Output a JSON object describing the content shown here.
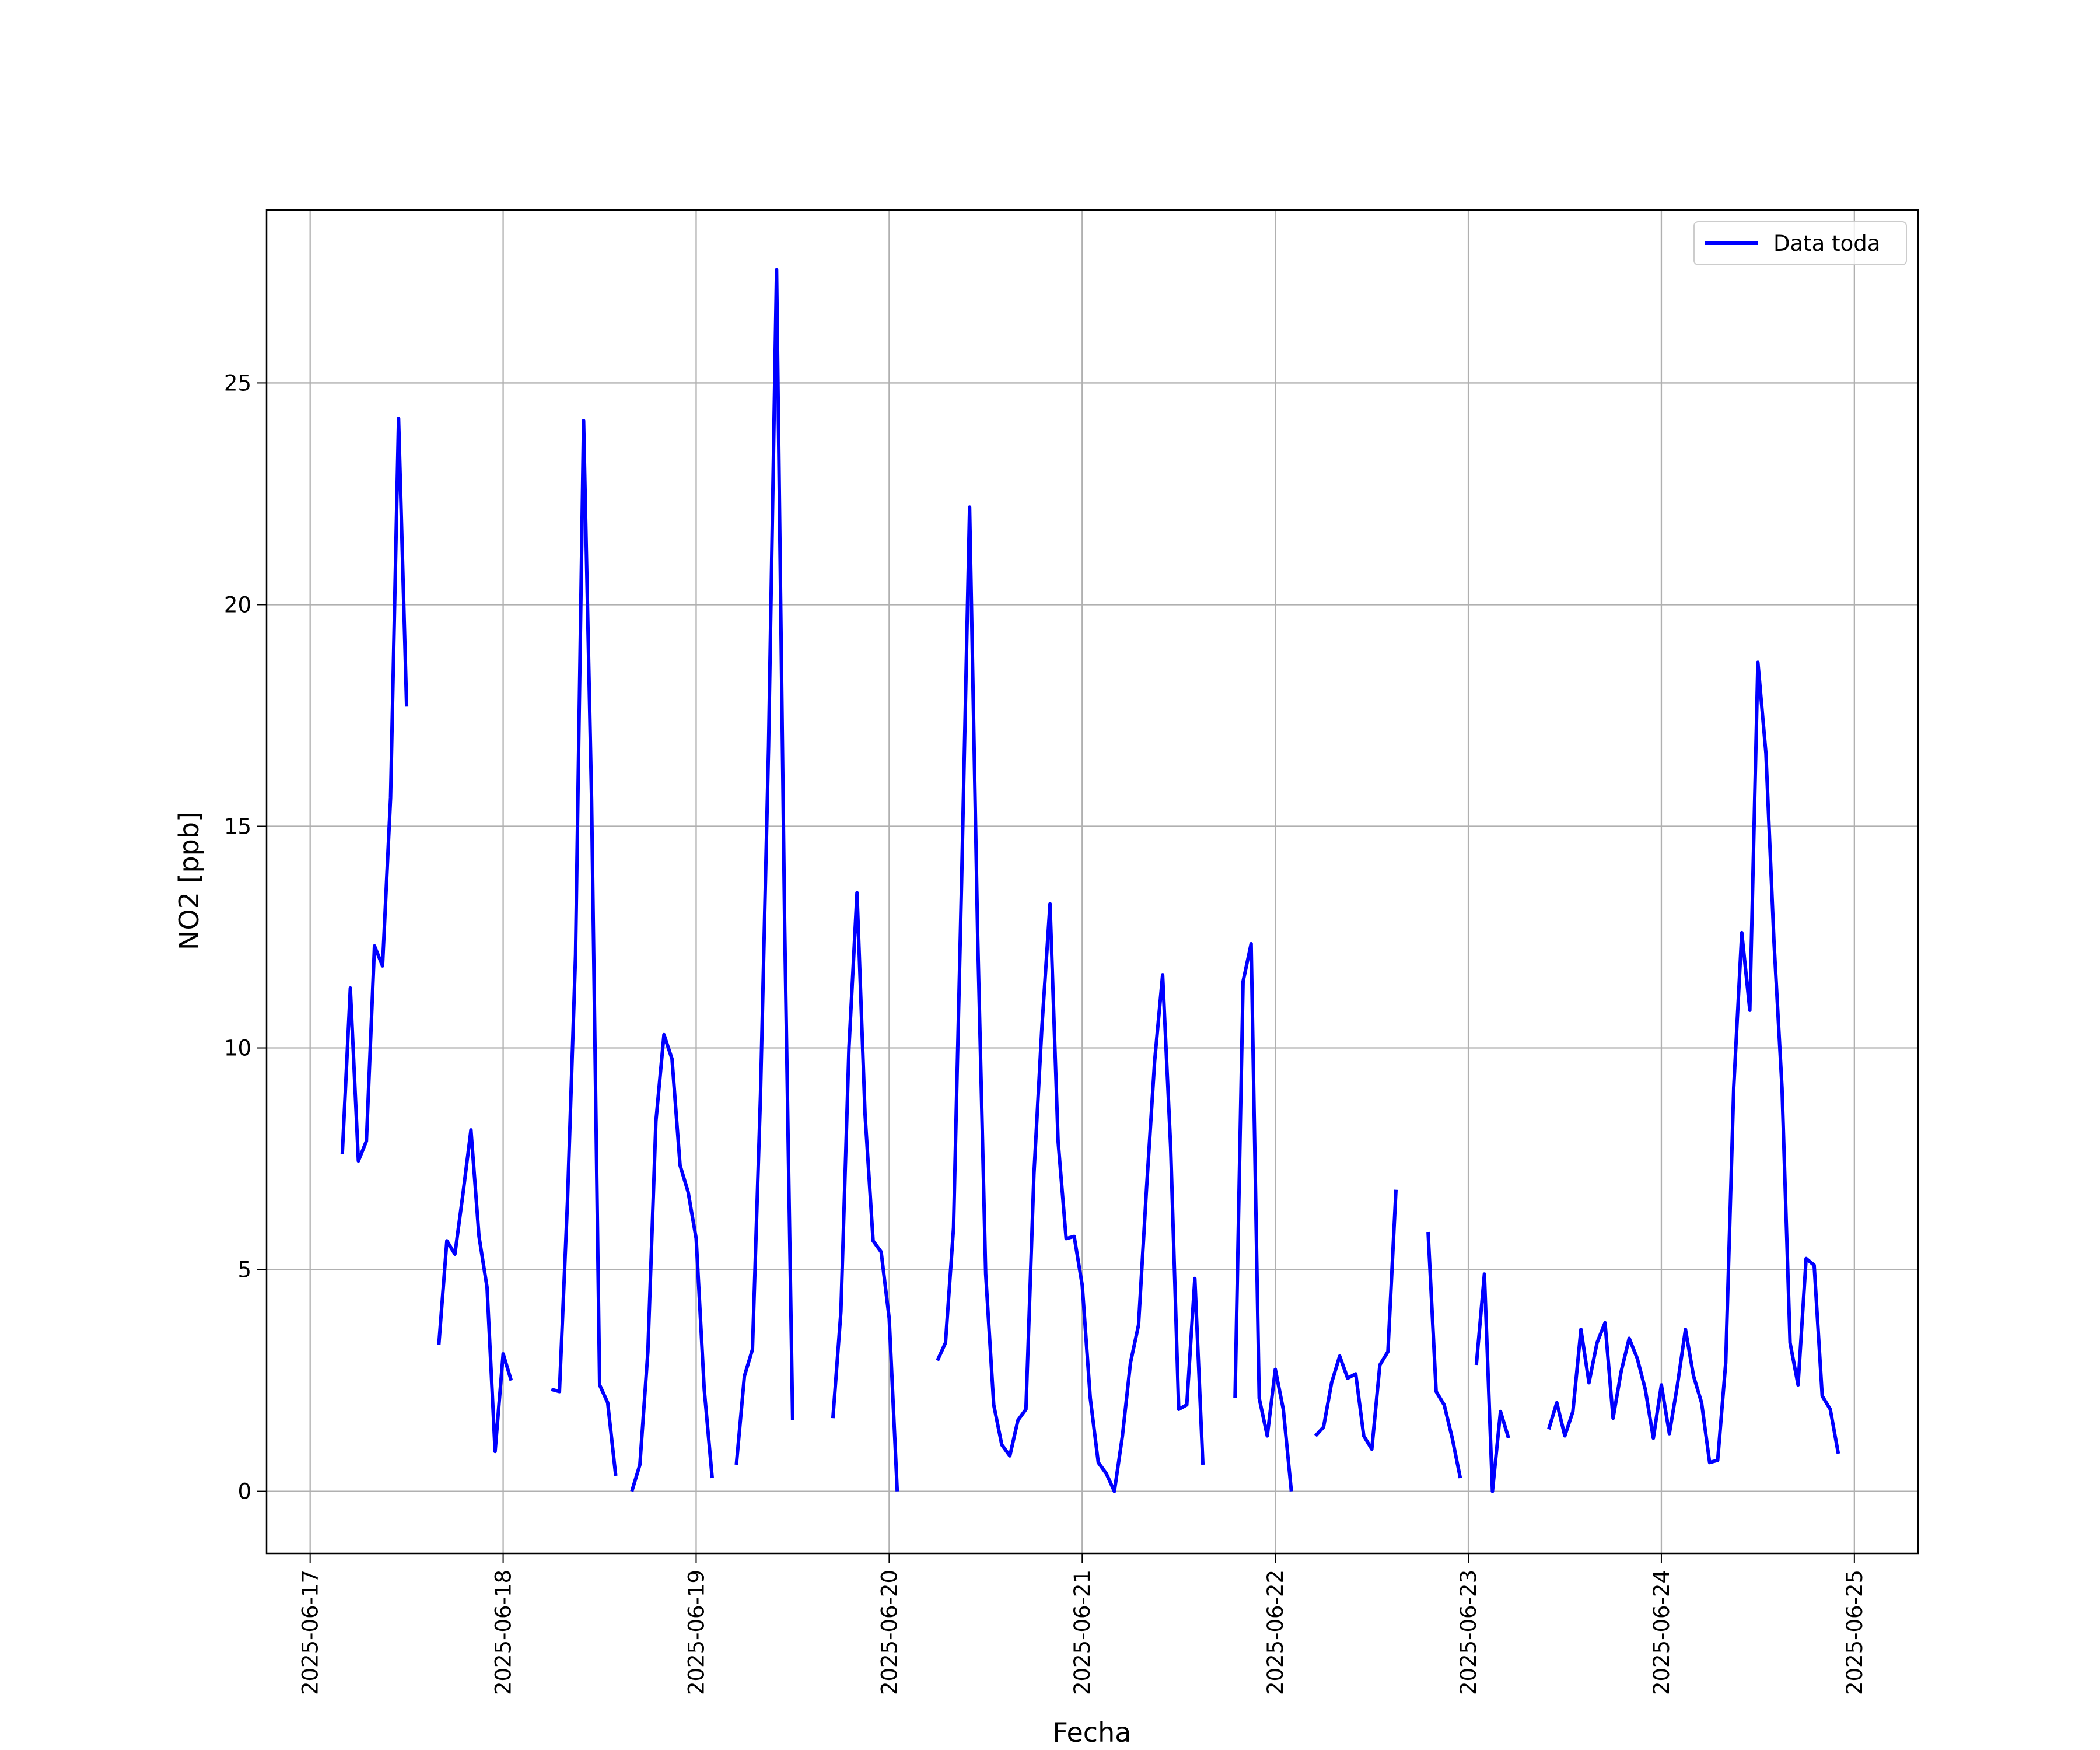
{
  "chart_data": {
    "type": "line",
    "xlabel": "Fecha",
    "ylabel": "NO2 [ppb]",
    "x": [
      "2025-06-17T04:00",
      "2025-06-17T05:00",
      "2025-06-17T06:00",
      "2025-06-17T07:00",
      "2025-06-17T08:00",
      "2025-06-17T09:00",
      "2025-06-17T10:00",
      "2025-06-17T11:00",
      "2025-06-17T12:00",
      "2025-06-17T13:00",
      "2025-06-17T16:00",
      "2025-06-17T17:00",
      "2025-06-17T18:00",
      "2025-06-17T19:00",
      "2025-06-17T20:00",
      "2025-06-17T21:00",
      "2025-06-17T22:00",
      "2025-06-17T23:00",
      "2025-06-18T00:00",
      "2025-06-18T01:00",
      "2025-06-18T02:00",
      "2025-06-18T06:00",
      "2025-06-18T07:00",
      "2025-06-18T08:00",
      "2025-06-18T09:00",
      "2025-06-18T10:00",
      "2025-06-18T11:00",
      "2025-06-18T12:00",
      "2025-06-18T13:00",
      "2025-06-18T14:00",
      "2025-06-18T15:00",
      "2025-06-18T16:00",
      "2025-06-18T17:00",
      "2025-06-18T18:00",
      "2025-06-18T19:00",
      "2025-06-18T20:00",
      "2025-06-18T21:00",
      "2025-06-18T22:00",
      "2025-06-18T23:00",
      "2025-06-19T00:00",
      "2025-06-19T01:00",
      "2025-06-19T02:00",
      "2025-06-19T03:00",
      "2025-06-19T05:00",
      "2025-06-19T06:00",
      "2025-06-19T07:00",
      "2025-06-19T08:00",
      "2025-06-19T09:00",
      "2025-06-19T10:00",
      "2025-06-19T11:00",
      "2025-06-19T12:00",
      "2025-06-19T13:00",
      "2025-06-19T17:00",
      "2025-06-19T18:00",
      "2025-06-19T19:00",
      "2025-06-19T20:00",
      "2025-06-19T21:00",
      "2025-06-19T22:00",
      "2025-06-19T23:00",
      "2025-06-20T00:00",
      "2025-06-20T01:00",
      "2025-06-20T02:00",
      "2025-06-20T06:00",
      "2025-06-20T07:00",
      "2025-06-20T08:00",
      "2025-06-20T09:00",
      "2025-06-20T10:00",
      "2025-06-20T11:00",
      "2025-06-20T12:00",
      "2025-06-20T13:00",
      "2025-06-20T14:00",
      "2025-06-20T15:00",
      "2025-06-20T16:00",
      "2025-06-20T17:00",
      "2025-06-20T18:00",
      "2025-06-20T19:00",
      "2025-06-20T20:00",
      "2025-06-20T21:00",
      "2025-06-20T22:00",
      "2025-06-20T23:00",
      "2025-06-21T00:00",
      "2025-06-21T01:00",
      "2025-06-21T02:00",
      "2025-06-21T03:00",
      "2025-06-21T04:00",
      "2025-06-21T05:00",
      "2025-06-21T06:00",
      "2025-06-21T07:00",
      "2025-06-21T08:00",
      "2025-06-21T09:00",
      "2025-06-21T10:00",
      "2025-06-21T11:00",
      "2025-06-21T12:00",
      "2025-06-21T13:00",
      "2025-06-21T14:00",
      "2025-06-21T15:00",
      "2025-06-21T16:00",
      "2025-06-21T19:00",
      "2025-06-21T20:00",
      "2025-06-21T21:00",
      "2025-06-21T22:00",
      "2025-06-21T23:00",
      "2025-06-22T00:00",
      "2025-06-22T01:00",
      "2025-06-22T02:00",
      "2025-06-22T03:00",
      "2025-06-22T05:00",
      "2025-06-22T06:00",
      "2025-06-22T07:00",
      "2025-06-22T08:00",
      "2025-06-22T09:00",
      "2025-06-22T10:00",
      "2025-06-22T11:00",
      "2025-06-22T12:00",
      "2025-06-22T13:00",
      "2025-06-22T14:00",
      "2025-06-22T15:00",
      "2025-06-22T16:00",
      "2025-06-22T19:00",
      "2025-06-22T20:00",
      "2025-06-22T21:00",
      "2025-06-22T22:00",
      "2025-06-22T23:00",
      "2025-06-23T00:00",
      "2025-06-23T01:00",
      "2025-06-23T02:00",
      "2025-06-23T03:00",
      "2025-06-23T04:00",
      "2025-06-23T05:00",
      "2025-06-23T06:00",
      "2025-06-23T10:00",
      "2025-06-23T11:00",
      "2025-06-23T12:00",
      "2025-06-23T13:00",
      "2025-06-23T14:00",
      "2025-06-23T15:00",
      "2025-06-23T16:00",
      "2025-06-23T17:00",
      "2025-06-23T18:00",
      "2025-06-23T19:00",
      "2025-06-23T20:00",
      "2025-06-23T21:00",
      "2025-06-23T22:00",
      "2025-06-23T23:00",
      "2025-06-24T00:00",
      "2025-06-24T01:00",
      "2025-06-24T02:00",
      "2025-06-24T03:00",
      "2025-06-24T04:00",
      "2025-06-24T05:00",
      "2025-06-24T06:00",
      "2025-06-24T07:00",
      "2025-06-24T08:00",
      "2025-06-24T09:00",
      "2025-06-24T10:00",
      "2025-06-24T11:00",
      "2025-06-24T12:00",
      "2025-06-24T13:00",
      "2025-06-24T14:00",
      "2025-06-24T15:00",
      "2025-06-24T16:00",
      "2025-06-24T17:00",
      "2025-06-24T18:00",
      "2025-06-24T19:00",
      "2025-06-24T20:00",
      "2025-06-24T21:00",
      "2025-06-24T22:00"
    ],
    "series": [
      {
        "name": "Data toda",
        "color": "#0000ff",
        "values": [
          7.6,
          11.35,
          7.45,
          7.9,
          12.3,
          11.85,
          15.65,
          24.2,
          17.7,
          null,
          3.3,
          5.65,
          5.35,
          6.7,
          8.15,
          5.75,
          4.6,
          0.9,
          3.1,
          2.5,
          null,
          2.3,
          2.25,
          6.55,
          12.1,
          24.15,
          15.6,
          2.4,
          2.0,
          0.35,
          null,
          0.0,
          0.6,
          3.15,
          8.35,
          10.3,
          9.75,
          7.35,
          6.75,
          5.7,
          2.3,
          0.3,
          null,
          0.6,
          2.6,
          3.2,
          8.95,
          16.8,
          27.55,
          12.85,
          1.6,
          null,
          1.65,
          4.05,
          10.0,
          13.5,
          8.5,
          5.65,
          5.4,
          3.9,
          0.0,
          null,
          2.95,
          3.35,
          5.95,
          13.75,
          22.2,
          12.55,
          4.9,
          1.95,
          1.05,
          0.8,
          1.6,
          1.85,
          7.15,
          10.5,
          13.25,
          7.9,
          5.7,
          5.75,
          4.65,
          2.1,
          0.65,
          0.4,
          0.0,
          1.25,
          2.9,
          3.75,
          6.85,
          9.7,
          11.65,
          7.75,
          1.85,
          1.95,
          4.8,
          0.6,
          null,
          2.1,
          11.5,
          12.35,
          2.1,
          1.25,
          2.75,
          1.85,
          0.0,
          null,
          1.25,
          1.45,
          2.45,
          3.05,
          2.55,
          2.65,
          1.25,
          0.95,
          2.85,
          3.15,
          6.8,
          null,
          5.85,
          2.25,
          1.95,
          1.2,
          0.3,
          null,
          2.85,
          4.9,
          0.0,
          1.8,
          1.2,
          null,
          1.4,
          2.0,
          1.25,
          1.8,
          3.65,
          2.45,
          3.35,
          3.8,
          1.65,
          2.7,
          3.45,
          3.0,
          2.3,
          1.2,
          2.4,
          1.3,
          2.4,
          3.65,
          2.6,
          2.0,
          0.65,
          0.7,
          2.9,
          9.1,
          12.6,
          10.85,
          18.7,
          16.65,
          12.4,
          9.1,
          3.35,
          2.4,
          5.25,
          5.1,
          2.15,
          1.85,
          0.85
        ]
      }
    ],
    "xlim": [
      "2025-06-16T18:35",
      "2025-06-25T07:55"
    ],
    "xticks": [
      "2025-06-17",
      "2025-06-18",
      "2025-06-19",
      "2025-06-20",
      "2025-06-21",
      "2025-06-22",
      "2025-06-23",
      "2025-06-24",
      "2025-06-25"
    ],
    "ylim": [
      -1.4,
      28.9
    ],
    "yticks": [
      0,
      5,
      10,
      15,
      20,
      25
    ],
    "grid": true,
    "legend": "upper right"
  }
}
